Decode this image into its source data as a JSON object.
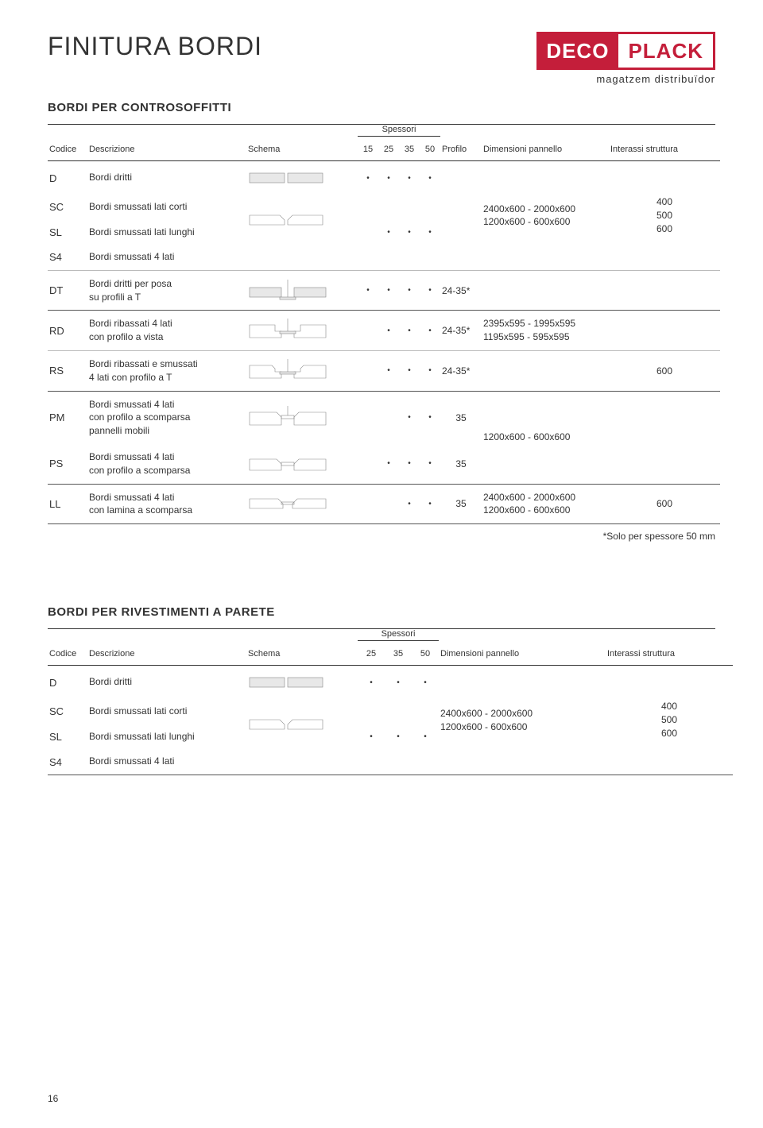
{
  "page": {
    "title": "FINITURA BORDI",
    "logo_left": "DECO",
    "logo_right": "PLACK",
    "logo_tag": "magatzem distribuïdor",
    "pagenum": "16"
  },
  "section1": {
    "title": "BORDI PER CONTROSOFFITTI",
    "headers": {
      "codice": "Codice",
      "desc": "Descrizione",
      "schema": "Schema",
      "spessori": "Spessori",
      "s15": "15",
      "s25": "25",
      "s35": "35",
      "s50": "50",
      "profilo": "Profilo",
      "dim": "Dimensioni pannello",
      "inter": "Interassi struttura"
    },
    "group1": {
      "r1": {
        "code": "D",
        "desc": "Bordi dritti",
        "d15": "•",
        "d25": "•",
        "d35": "•",
        "d50": "•"
      },
      "r2": {
        "code": "SC",
        "desc": "Bordi smussati lati corti"
      },
      "r3": {
        "code": "SL",
        "desc": "Bordi smussati lati lunghi",
        "d25": "•",
        "d35": "•",
        "d50": "•"
      },
      "r4": {
        "code": "S4",
        "desc": "Bordi smussati 4 lati"
      },
      "dim1": "2400x600 - 2000x600",
      "dim2": "1200x600 - 600x600",
      "i1": "400",
      "i2": "500",
      "i3": "600"
    },
    "dt": {
      "code": "DT",
      "desc": "Bordi dritti per posa\nsu profili a T",
      "d15": "•",
      "d25": "•",
      "d35": "•",
      "d50": "•",
      "prof": "24-35*"
    },
    "rd": {
      "code": "RD",
      "desc": "Bordi ribassati 4 lati\ncon profilo a vista",
      "d25": "•",
      "d35": "•",
      "d50": "•",
      "prof": "24-35*",
      "dim1": "2395x595 - 1995x595",
      "dim2": "1195x595 - 595x595"
    },
    "rs": {
      "code": "RS",
      "desc": "Bordi ribassati e smussati\n4 lati con profilo a T",
      "d25": "•",
      "d35": "•",
      "d50": "•",
      "prof": "24-35*",
      "inter": "600"
    },
    "pm": {
      "code": "PM",
      "desc": "Bordi smussati 4 lati\ncon profilo a scomparsa\npannelli mobili",
      "d35": "•",
      "d50": "•",
      "prof": "35"
    },
    "ps": {
      "code": "PS",
      "desc": "Bordi smussati 4 lati\ncon profilo a scomparsa",
      "d25": "•",
      "d35": "•",
      "d50": "•",
      "prof": "35"
    },
    "pmps_dim": "1200x600 - 600x600",
    "ll": {
      "code": "LL",
      "desc": "Bordi smussati 4 lati\ncon lamina a scomparsa",
      "d35": "•",
      "d50": "•",
      "prof": "35",
      "dim1": "2400x600 - 2000x600",
      "dim2": "1200x600 - 600x600",
      "inter": "600"
    },
    "note": "*Solo per spessore 50 mm"
  },
  "section2": {
    "title": "BORDI PER RIVESTIMENTI A PARETE",
    "headers": {
      "codice": "Codice",
      "desc": "Descrizione",
      "schema": "Schema",
      "spessori": "Spessori",
      "s25": "25",
      "s35": "35",
      "s50": "50",
      "dim": "Dimensioni pannello",
      "inter": "Interassi struttura"
    },
    "r1": {
      "code": "D",
      "desc": "Bordi dritti",
      "d25": "•",
      "d35": "•",
      "d50": "•"
    },
    "r2": {
      "code": "SC",
      "desc": "Bordi smussati lati corti"
    },
    "r3": {
      "code": "SL",
      "desc": "Bordi smussati lati lunghi",
      "d25": "•",
      "d35": "•",
      "d50": "•"
    },
    "r4": {
      "code": "S4",
      "desc": "Bordi smussati 4 lati"
    },
    "dim1": "2400x600 - 2000x600",
    "dim2": "1200x600 - 600x600",
    "i1": "400",
    "i2": "500",
    "i3": "600"
  }
}
